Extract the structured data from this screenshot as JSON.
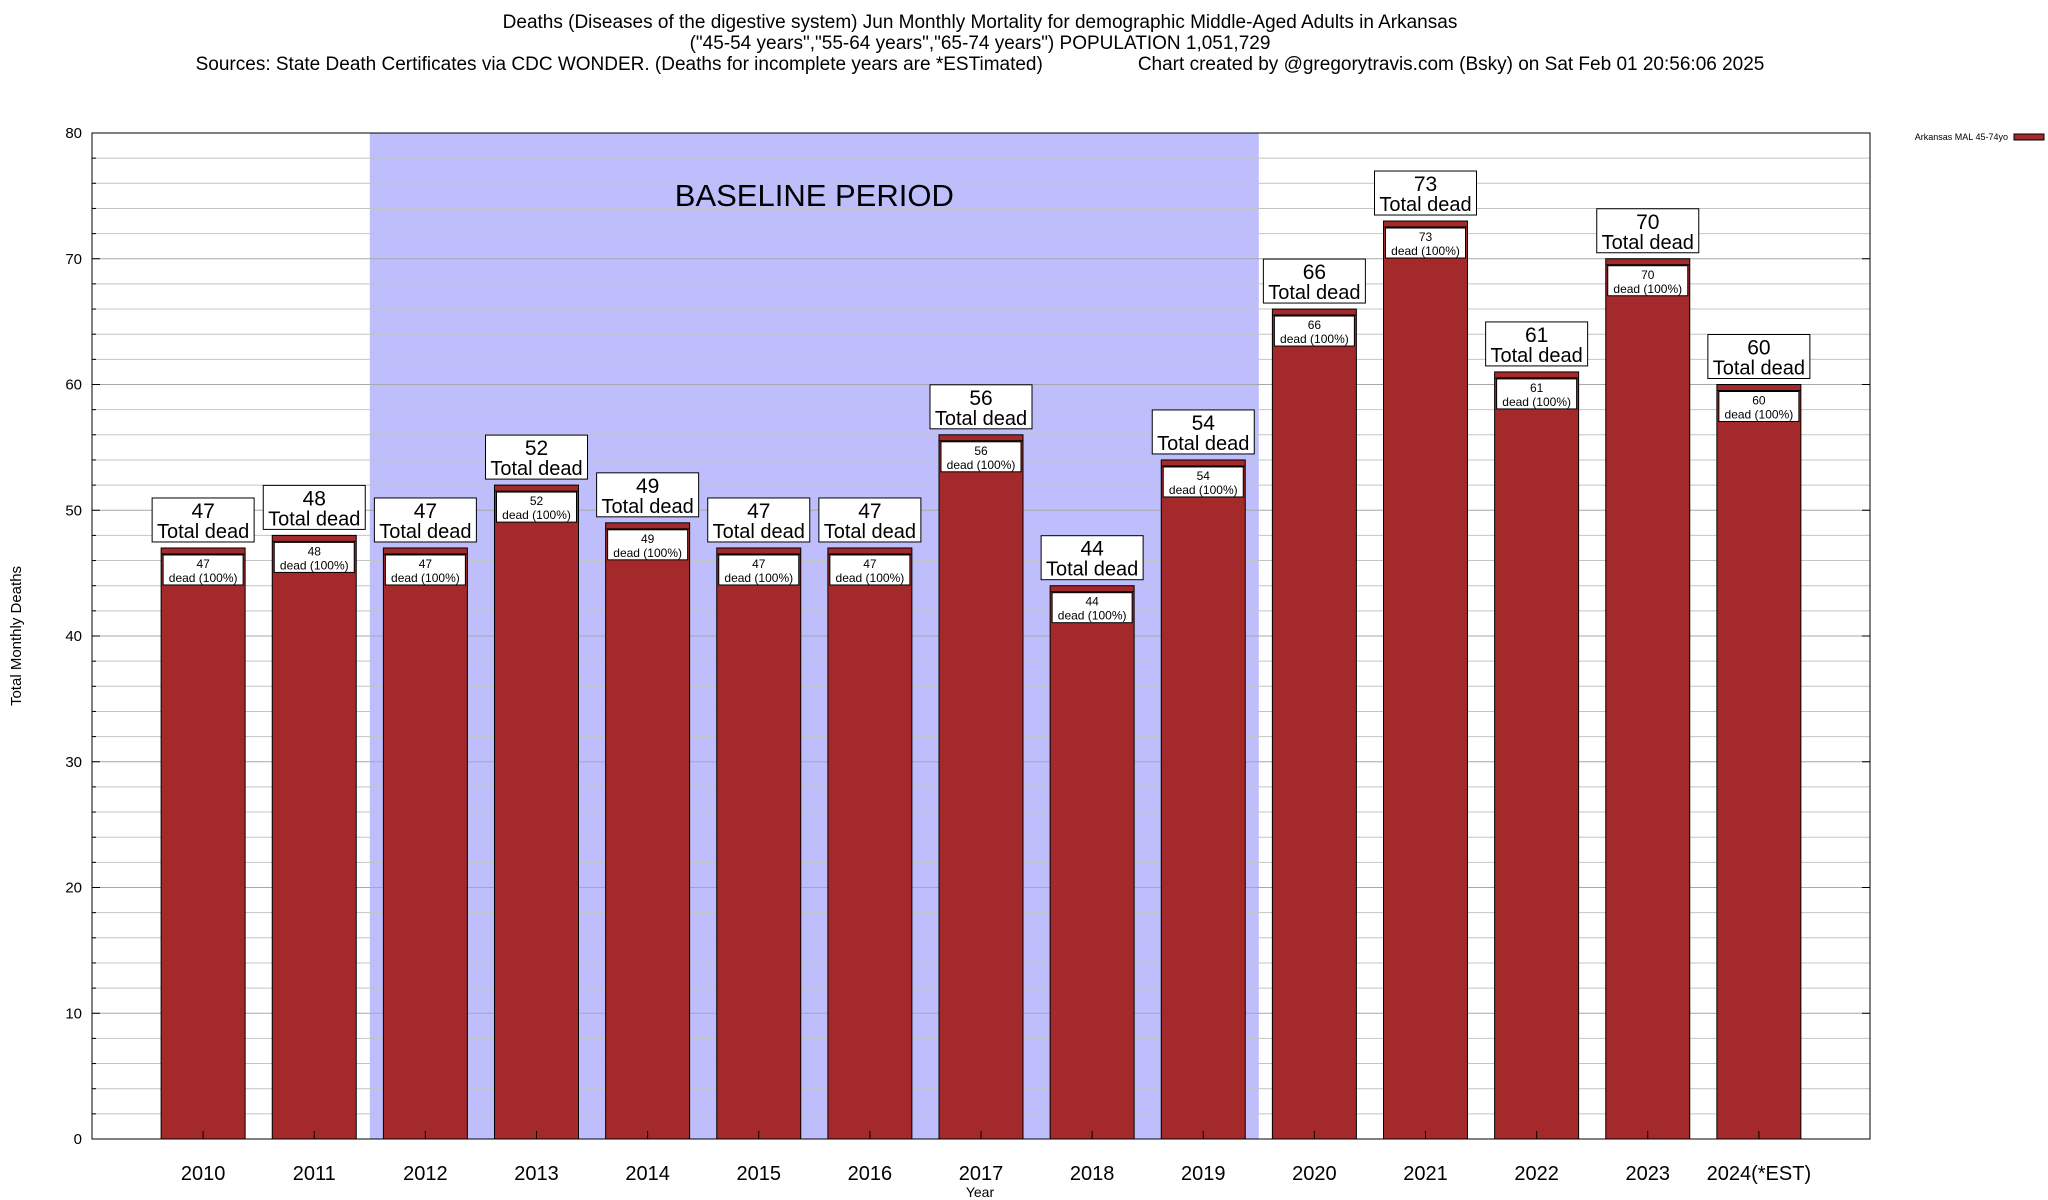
{
  "header": {
    "title_line1": "Deaths (Diseases of the digestive system) Jun Monthly Mortality for demographic Middle-Aged Adults in Arkansas",
    "title_line2": "(\"45-54 years\",\"55-64 years\",\"65-74 years\") POPULATION 1,051,729",
    "sources": "Sources: State Death Certificates via CDC WONDER. (Deaths for incomplete years are *ESTimated)",
    "credit": "Chart created by @gregorytravis.com (Bsky) on Sat Feb 01 20:56:06 2025"
  },
  "chart_data": {
    "type": "bar",
    "categories": [
      "2010",
      "2011",
      "2012",
      "2013",
      "2014",
      "2015",
      "2016",
      "2017",
      "2018",
      "2019",
      "2020",
      "2021",
      "2022",
      "2023",
      "2024(*EST)"
    ],
    "series": [
      {
        "name": "Arkansas MAL 45-74yo",
        "values": [
          47,
          48,
          47,
          52,
          49,
          47,
          47,
          56,
          44,
          54,
          66,
          73,
          61,
          70,
          60
        ]
      }
    ],
    "xlabel": "Year",
    "ylabel": "Total Monthly Deaths",
    "ylim": [
      0,
      80
    ],
    "yticks": [
      0,
      10,
      20,
      30,
      40,
      50,
      60,
      70,
      80
    ],
    "grid": true,
    "legend_position": "top-right",
    "bar_color": "#a3292a",
    "shade_color": "#bebefc",
    "baseline_band": {
      "label": "BASELINE PERIOD",
      "start": "2012",
      "end": "2019"
    },
    "annotations": {
      "top_label": "Total dead",
      "inner_label": "dead (100%)"
    }
  }
}
